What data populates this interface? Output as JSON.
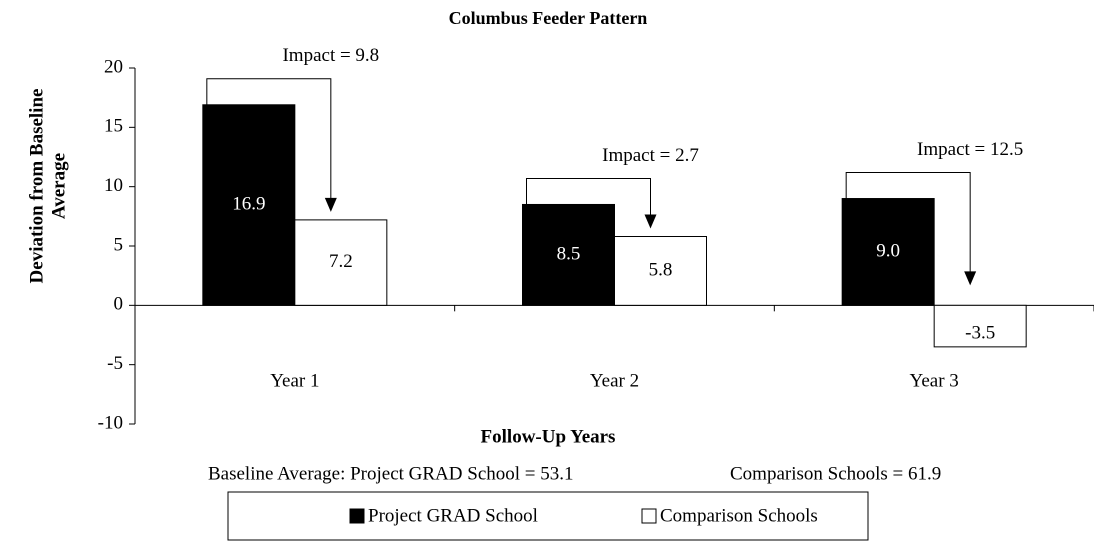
{
  "chart_data": {
    "type": "bar",
    "title": "Columbus Feeder Pattern",
    "ylabel": [
      "Deviation from Baseline",
      "Average"
    ],
    "xlabel": "Follow-Up Years",
    "categories": [
      "Year 1",
      "Year 2",
      "Year 3"
    ],
    "series": [
      {
        "name": "Project GRAD School",
        "color": "#000000",
        "values": [
          16.9,
          8.5,
          9.0
        ],
        "value_labels": [
          "16.9",
          "8.5",
          "9.0"
        ]
      },
      {
        "name": "Comparison Schools",
        "color": "#ffffff",
        "values": [
          7.2,
          5.8,
          -3.5
        ],
        "value_labels": [
          "7.2",
          "5.8",
          "-3.5"
        ]
      }
    ],
    "annotations": [
      "Impact = 9.8",
      "Impact = 2.7",
      "Impact = 12.5"
    ],
    "notes": [
      "Baseline Average: Project GRAD School = 53.1",
      "Comparison Schools = 61.9"
    ],
    "ylim": [
      -10,
      20
    ],
    "yticks": [
      -10,
      -5,
      0,
      5,
      10,
      15,
      20
    ],
    "legend": "bottom"
  }
}
